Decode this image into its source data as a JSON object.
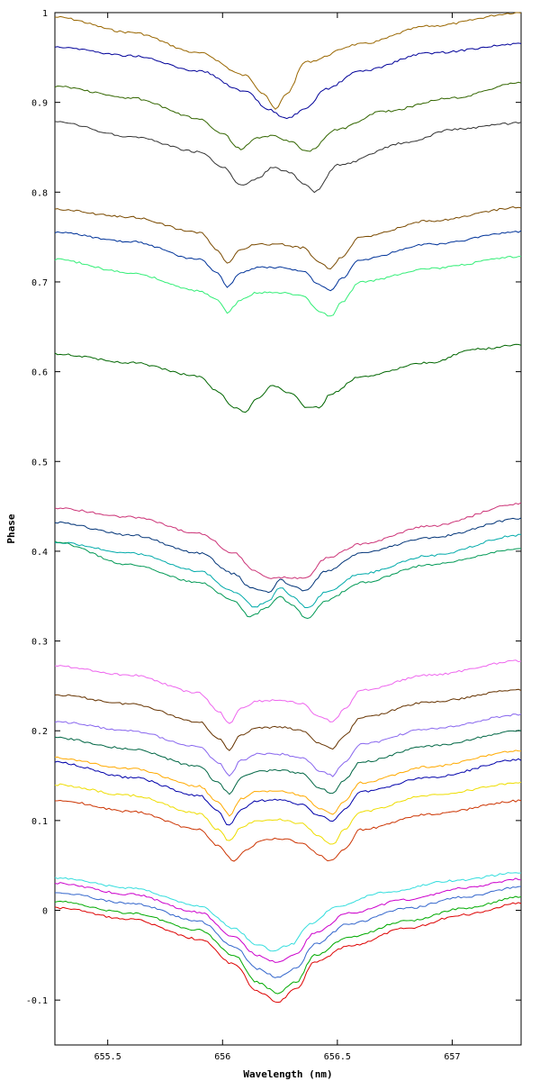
{
  "chart_data": {
    "type": "line",
    "title": "",
    "xlabel": "Wavelength (nm)",
    "ylabel": "Phase",
    "xlim": [
      655.27,
      657.3
    ],
    "ylim": [
      -0.15,
      1.0
    ],
    "grid": false,
    "legend": "none",
    "x_ticks": [
      655.5,
      656,
      656.5,
      657
    ],
    "x_tick_labels": [
      "655.5",
      "656",
      "656.5",
      "657"
    ],
    "y_ticks": [
      -0.1,
      0,
      0.1,
      0.2,
      0.3,
      0.4,
      0.5,
      0.6,
      0.7,
      0.8,
      0.9,
      1
    ],
    "y_tick_labels": [
      "-0.1",
      "0",
      "0.1",
      "0.2",
      "0.3",
      "0.4",
      "0.5",
      "0.6",
      "0.7",
      "0.8",
      "0.9",
      "1"
    ],
    "series": [
      {
        "color": "#996600",
        "x": [
          655.27,
          655.6,
          655.9,
          656.1,
          656.18,
          656.23,
          656.28,
          656.36,
          656.6,
          656.9,
          657.3
        ],
        "y": [
          0.995,
          0.978,
          0.955,
          0.93,
          0.91,
          0.892,
          0.91,
          0.945,
          0.965,
          0.985,
          1.0
        ]
      },
      {
        "color": "#000099",
        "x": [
          655.27,
          655.6,
          655.9,
          656.1,
          656.2,
          656.28,
          656.36,
          656.45,
          656.6,
          656.9,
          657.3
        ],
        "y": [
          0.962,
          0.952,
          0.935,
          0.912,
          0.892,
          0.882,
          0.892,
          0.915,
          0.935,
          0.955,
          0.965
        ]
      },
      {
        "color": "#336600",
        "x": [
          655.27,
          655.6,
          655.9,
          656.0,
          656.08,
          656.15,
          656.22,
          656.29,
          656.37,
          656.5,
          656.7,
          657.0,
          657.3
        ],
        "y": [
          0.918,
          0.905,
          0.882,
          0.865,
          0.848,
          0.86,
          0.863,
          0.857,
          0.845,
          0.87,
          0.89,
          0.905,
          0.922
        ]
      },
      {
        "color": "#333333",
        "x": [
          655.27,
          655.6,
          655.9,
          656.0,
          656.08,
          656.15,
          656.22,
          656.29,
          656.36,
          656.4,
          656.5,
          656.8,
          657.0,
          657.3
        ],
        "y": [
          0.878,
          0.862,
          0.845,
          0.828,
          0.808,
          0.815,
          0.828,
          0.822,
          0.808,
          0.8,
          0.83,
          0.855,
          0.87,
          0.877
        ]
      },
      {
        "color": "#7a4a00",
        "x": [
          655.27,
          655.6,
          655.9,
          655.98,
          656.02,
          656.08,
          656.15,
          656.25,
          656.35,
          656.42,
          656.47,
          656.52,
          656.6,
          656.9,
          657.3
        ],
        "y": [
          0.781,
          0.772,
          0.755,
          0.735,
          0.72,
          0.737,
          0.742,
          0.742,
          0.738,
          0.722,
          0.715,
          0.728,
          0.75,
          0.768,
          0.783
        ]
      },
      {
        "color": "#003399",
        "x": [
          655.27,
          655.6,
          655.9,
          655.98,
          656.02,
          656.08,
          656.15,
          656.25,
          656.35,
          656.42,
          656.47,
          656.52,
          656.6,
          656.9,
          657.3
        ],
        "y": [
          0.755,
          0.745,
          0.725,
          0.71,
          0.695,
          0.71,
          0.716,
          0.716,
          0.712,
          0.697,
          0.69,
          0.704,
          0.725,
          0.742,
          0.756
        ]
      },
      {
        "color": "#33ee77",
        "x": [
          655.27,
          655.6,
          655.9,
          655.98,
          656.02,
          656.08,
          656.15,
          656.25,
          656.35,
          656.42,
          656.47,
          656.52,
          656.6,
          656.9,
          657.3
        ],
        "y": [
          0.725,
          0.71,
          0.69,
          0.68,
          0.666,
          0.68,
          0.688,
          0.688,
          0.684,
          0.668,
          0.661,
          0.678,
          0.7,
          0.715,
          0.728
        ]
      },
      {
        "color": "#006600",
        "x": [
          655.27,
          655.6,
          655.9,
          655.98,
          656.05,
          656.1,
          656.15,
          656.22,
          656.3,
          656.37,
          656.42,
          656.47,
          656.6,
          656.9,
          657.1,
          657.3
        ],
        "y": [
          0.62,
          0.61,
          0.595,
          0.578,
          0.56,
          0.555,
          0.57,
          0.585,
          0.575,
          0.56,
          0.56,
          0.575,
          0.595,
          0.61,
          0.625,
          0.63
        ]
      },
      {
        "color": "#cc3377",
        "x": [
          655.27,
          655.6,
          655.9,
          656.05,
          656.14,
          656.2,
          656.28,
          656.36,
          656.45,
          656.6,
          656.9,
          657.3
        ],
        "y": [
          0.448,
          0.438,
          0.42,
          0.398,
          0.378,
          0.37,
          0.371,
          0.37,
          0.392,
          0.408,
          0.428,
          0.453
        ]
      },
      {
        "color": "#003377",
        "x": [
          655.27,
          655.6,
          655.9,
          656.05,
          656.12,
          656.2,
          656.25,
          656.3,
          656.36,
          656.45,
          656.6,
          656.9,
          657.3
        ],
        "y": [
          0.432,
          0.418,
          0.398,
          0.375,
          0.36,
          0.354,
          0.368,
          0.362,
          0.356,
          0.378,
          0.398,
          0.415,
          0.436
        ]
      },
      {
        "color": "#00aaaa",
        "x": [
          655.27,
          655.6,
          655.9,
          656.05,
          656.14,
          656.2,
          656.25,
          656.3,
          656.37,
          656.45,
          656.6,
          656.9,
          657.3
        ],
        "y": [
          0.41,
          0.398,
          0.378,
          0.355,
          0.338,
          0.345,
          0.36,
          0.35,
          0.337,
          0.355,
          0.375,
          0.395,
          0.418
        ]
      },
      {
        "color": "#009955",
        "x": [
          655.27,
          655.6,
          655.9,
          656.05,
          656.12,
          656.2,
          656.25,
          656.3,
          656.37,
          656.45,
          656.6,
          656.9,
          657.3
        ],
        "y": [
          0.41,
          0.385,
          0.365,
          0.345,
          0.327,
          0.338,
          0.35,
          0.34,
          0.325,
          0.345,
          0.365,
          0.385,
          0.403
        ]
      },
      {
        "color": "#ee66ee",
        "x": [
          655.27,
          655.6,
          655.9,
          655.98,
          656.03,
          656.08,
          656.15,
          656.25,
          656.35,
          656.42,
          656.48,
          656.53,
          656.6,
          656.9,
          657.3
        ],
        "y": [
          0.272,
          0.262,
          0.242,
          0.222,
          0.208,
          0.225,
          0.233,
          0.234,
          0.23,
          0.216,
          0.21,
          0.224,
          0.245,
          0.262,
          0.278
        ]
      },
      {
        "color": "#663300",
        "x": [
          655.27,
          655.6,
          655.9,
          655.98,
          656.03,
          656.08,
          656.15,
          656.25,
          656.35,
          656.42,
          656.48,
          656.53,
          656.6,
          656.9,
          657.3
        ],
        "y": [
          0.24,
          0.23,
          0.21,
          0.192,
          0.178,
          0.196,
          0.203,
          0.204,
          0.2,
          0.186,
          0.18,
          0.194,
          0.215,
          0.232,
          0.246
        ]
      },
      {
        "color": "#8866ee",
        "x": [
          655.27,
          655.6,
          655.9,
          655.98,
          656.03,
          656.08,
          656.15,
          656.25,
          656.35,
          656.42,
          656.48,
          656.53,
          656.6,
          656.9,
          657.3
        ],
        "y": [
          0.21,
          0.2,
          0.182,
          0.165,
          0.15,
          0.167,
          0.174,
          0.174,
          0.17,
          0.156,
          0.15,
          0.165,
          0.185,
          0.202,
          0.218
        ]
      },
      {
        "color": "#006644",
        "x": [
          655.27,
          655.6,
          655.9,
          655.98,
          656.03,
          656.08,
          656.15,
          656.25,
          656.35,
          656.42,
          656.48,
          656.53,
          656.6,
          656.9,
          657.3
        ],
        "y": [
          0.192,
          0.18,
          0.16,
          0.142,
          0.13,
          0.148,
          0.155,
          0.156,
          0.152,
          0.137,
          0.13,
          0.145,
          0.165,
          0.183,
          0.2
        ]
      },
      {
        "color": "#ffaa00",
        "x": [
          655.27,
          655.6,
          655.9,
          655.98,
          656.03,
          656.08,
          656.15,
          656.25,
          656.35,
          656.42,
          656.48,
          656.53,
          656.6,
          656.9,
          657.3
        ],
        "y": [
          0.17,
          0.158,
          0.138,
          0.12,
          0.106,
          0.124,
          0.132,
          0.133,
          0.128,
          0.113,
          0.107,
          0.122,
          0.142,
          0.16,
          0.178
        ]
      },
      {
        "color": "#0000aa",
        "x": [
          655.27,
          655.6,
          655.9,
          655.98,
          656.03,
          656.08,
          656.15,
          656.25,
          656.35,
          656.42,
          656.48,
          656.53,
          656.6,
          656.9,
          657.3
        ],
        "y": [
          0.165,
          0.148,
          0.128,
          0.11,
          0.094,
          0.112,
          0.122,
          0.123,
          0.118,
          0.105,
          0.1,
          0.112,
          0.132,
          0.148,
          0.168
        ]
      },
      {
        "color": "#eedd00",
        "x": [
          655.27,
          655.6,
          655.9,
          655.98,
          656.03,
          656.08,
          656.15,
          656.25,
          656.35,
          656.42,
          656.48,
          656.53,
          656.6,
          656.9,
          657.3
        ],
        "y": [
          0.14,
          0.128,
          0.108,
          0.09,
          0.077,
          0.093,
          0.1,
          0.101,
          0.096,
          0.082,
          0.073,
          0.09,
          0.11,
          0.128,
          0.142
        ]
      },
      {
        "color": "#cc3300",
        "x": [
          655.27,
          655.6,
          655.9,
          655.98,
          656.05,
          656.1,
          656.17,
          656.25,
          656.35,
          656.42,
          656.47,
          656.53,
          656.6,
          656.9,
          657.3
        ],
        "y": [
          0.123,
          0.11,
          0.09,
          0.072,
          0.055,
          0.066,
          0.078,
          0.08,
          0.075,
          0.062,
          0.055,
          0.068,
          0.09,
          0.107,
          0.122
        ]
      },
      {
        "color": "#33dddd",
        "x": [
          655.27,
          655.6,
          655.9,
          656.05,
          656.15,
          656.22,
          656.3,
          656.38,
          656.5,
          656.7,
          657.0,
          657.3
        ],
        "y": [
          0.036,
          0.025,
          0.005,
          -0.02,
          -0.038,
          -0.045,
          -0.038,
          -0.015,
          0.005,
          0.02,
          0.033,
          0.042
        ]
      },
      {
        "color": "#cc00cc",
        "x": [
          655.27,
          655.6,
          655.9,
          656.05,
          656.15,
          656.24,
          656.32,
          656.4,
          656.55,
          656.8,
          657.05,
          657.3
        ],
        "y": [
          0.03,
          0.018,
          -0.002,
          -0.03,
          -0.05,
          -0.058,
          -0.048,
          -0.025,
          -0.003,
          0.012,
          0.025,
          0.035
        ]
      },
      {
        "color": "#3366cc",
        "x": [
          655.27,
          655.6,
          655.9,
          656.05,
          656.15,
          656.24,
          656.32,
          656.4,
          656.55,
          656.8,
          657.05,
          657.3
        ],
        "y": [
          0.02,
          0.008,
          -0.012,
          -0.04,
          -0.065,
          -0.075,
          -0.065,
          -0.038,
          -0.015,
          0.002,
          0.015,
          0.026
        ]
      },
      {
        "color": "#00aa00",
        "x": [
          655.27,
          655.6,
          655.9,
          656.05,
          656.15,
          656.24,
          656.32,
          656.4,
          656.55,
          656.8,
          657.05,
          657.3
        ],
        "y": [
          0.01,
          -0.003,
          -0.022,
          -0.05,
          -0.08,
          -0.092,
          -0.08,
          -0.05,
          -0.03,
          -0.012,
          0.002,
          0.015
        ]
      },
      {
        "color": "#dd0000",
        "x": [
          655.27,
          655.6,
          655.9,
          656.05,
          656.15,
          656.24,
          656.32,
          656.4,
          656.55,
          656.8,
          657.05,
          657.3
        ],
        "y": [
          0.003,
          -0.01,
          -0.032,
          -0.06,
          -0.09,
          -0.102,
          -0.088,
          -0.058,
          -0.04,
          -0.02,
          -0.005,
          0.008
        ]
      }
    ]
  }
}
